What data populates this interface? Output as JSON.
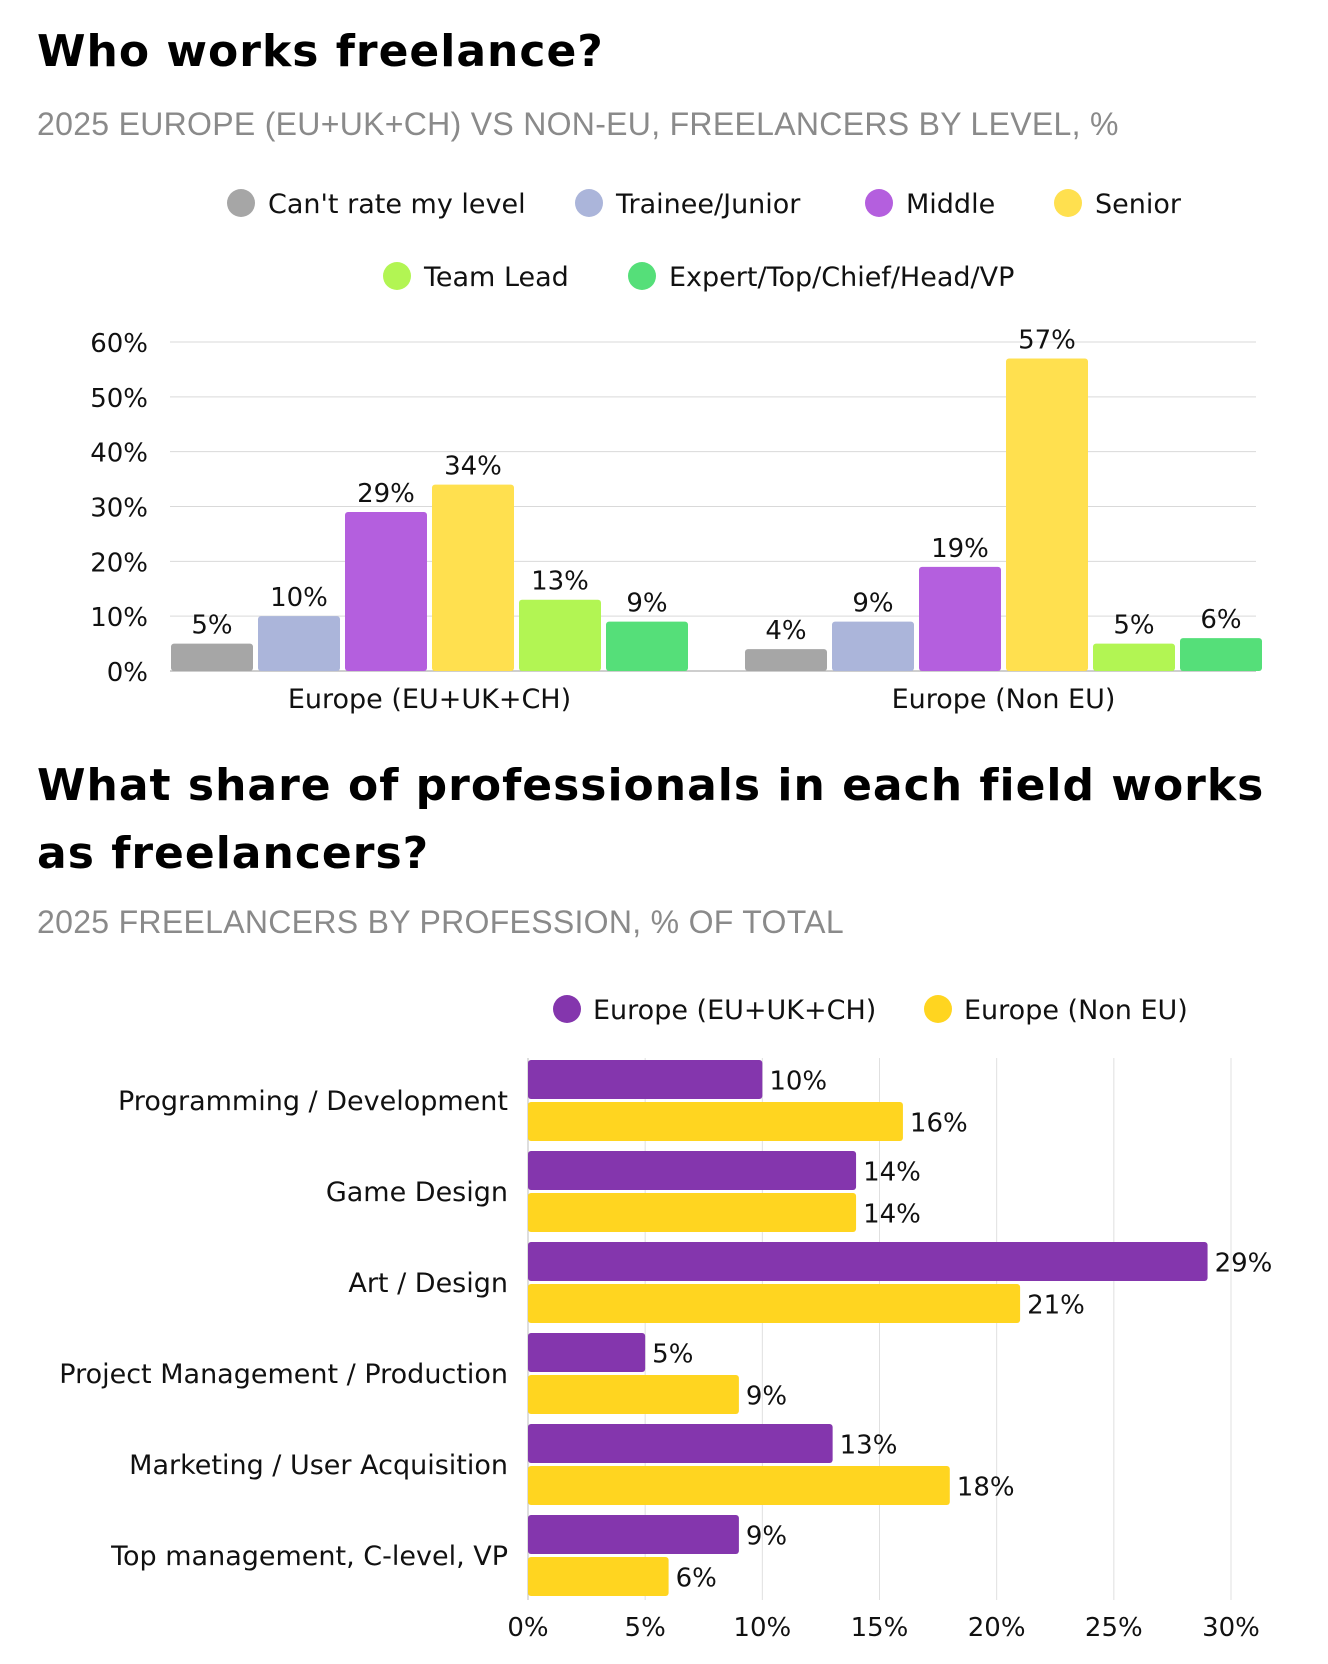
{
  "chart_data": [
    {
      "type": "bar",
      "title": "Who works freelance?",
      "subtitle": "2025 EUROPE (EU+UK+CH) VS NON-EU, FREELANCERS BY LEVEL, %",
      "categories": [
        "Europe (EU+UK+CH)",
        "Europe (Non EU)"
      ],
      "series": [
        {
          "name": "Can't rate my level",
          "color": "#a6a6a6",
          "values": [
            5,
            4
          ]
        },
        {
          "name": "Trainee/Junior",
          "color": "#abb5da",
          "values": [
            10,
            9
          ]
        },
        {
          "name": "Middle",
          "color": "#b45fde",
          "values": [
            29,
            19
          ]
        },
        {
          "name": "Senior",
          "color": "#ffe04f",
          "values": [
            34,
            57
          ]
        },
        {
          "name": "Team Lead",
          "color": "#b2f553",
          "values": [
            13,
            5
          ]
        },
        {
          "name": "Expert/Top/Chief/Head/VP",
          "color": "#55df79",
          "values": [
            9,
            6
          ]
        }
      ],
      "ylim": [
        0,
        60
      ],
      "yticks": [
        "0%",
        "10%",
        "20%",
        "30%",
        "40%",
        "50%",
        "60%"
      ],
      "value_suffix": "%",
      "legend": "top",
      "grid": true
    },
    {
      "type": "bar",
      "orientation": "horizontal",
      "title": "What share of professionals in each field works as freelancers?",
      "subtitle": "2025 FREELANCERS BY PROFESSION, % OF TOTAL",
      "categories": [
        "Programming / Development",
        "Game Design",
        "Art / Design",
        "Project Management / Production",
        "Marketing / User Acquisition",
        "Top management, C-level, VP"
      ],
      "series": [
        {
          "name": "Europe (EU+UK+CH)",
          "color": "#8436ad",
          "values": [
            10,
            14,
            29,
            5,
            13,
            9
          ]
        },
        {
          "name": "Europe (Non EU)",
          "color": "#ffd520",
          "values": [
            16,
            14,
            21,
            9,
            18,
            6
          ]
        }
      ],
      "xlim": [
        0,
        30
      ],
      "xticks": [
        "0%",
        "5%",
        "10%",
        "15%",
        "20%",
        "25%",
        "30%"
      ],
      "value_suffix": "%",
      "legend": "top",
      "grid": true
    }
  ]
}
